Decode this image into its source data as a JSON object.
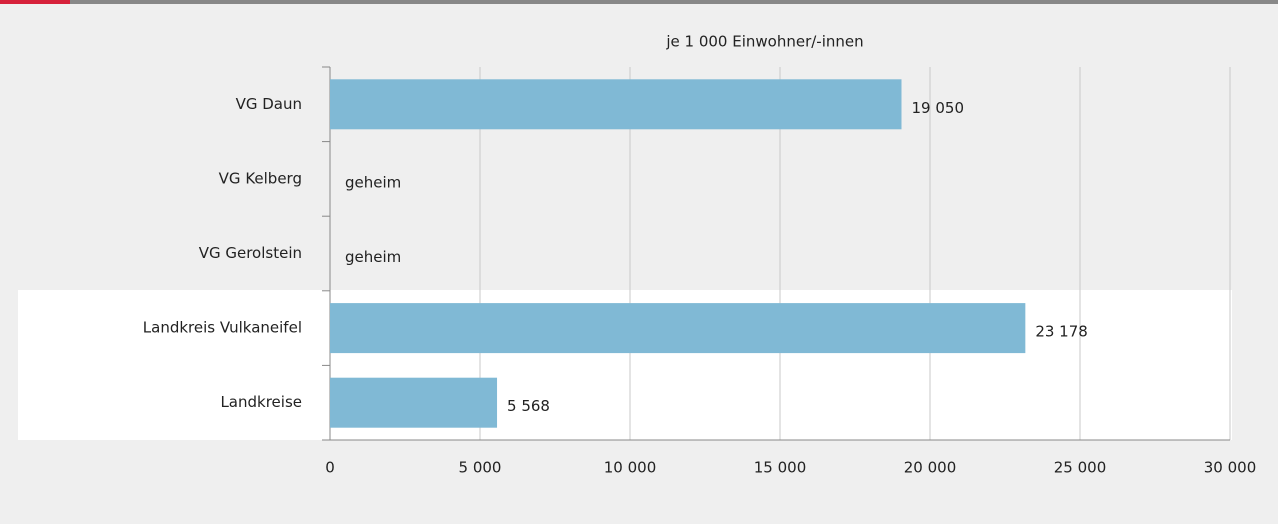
{
  "chart_data": {
    "type": "hbar",
    "title": "je 1 000 Einwohner/-innen",
    "categories": [
      "VG Daun",
      "VG Kelberg",
      "VG Gerolstein",
      "Landkreis Vulkaneifel",
      "Landkreise"
    ],
    "values": [
      19050,
      null,
      null,
      23178,
      5568
    ],
    "value_labels": [
      "19 050",
      "geheim",
      "geheim",
      "23 178",
      "5 568"
    ],
    "color": "#80b9d5",
    "xlim": [
      0,
      30000
    ],
    "xticks": [
      0,
      {
        "value": 5000,
        "label": "5 000"
      },
      {
        "value": 10000,
        "label": "10 000"
      },
      {
        "value": 15000,
        "label": "15 000"
      },
      {
        "value": 20000,
        "label": "20 000"
      },
      {
        "value": 25000,
        "label": "25 000"
      },
      {
        "value": 30000,
        "label": "30 000"
      }
    ],
    "grid": true
  }
}
